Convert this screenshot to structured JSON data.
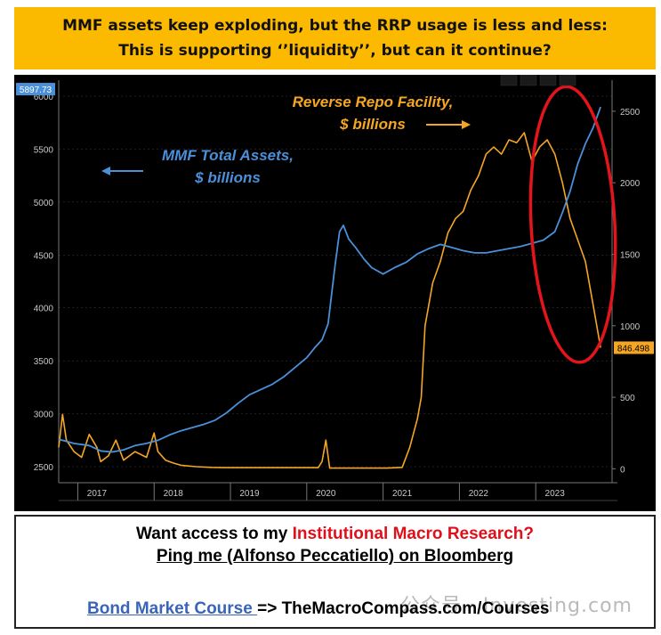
{
  "header": {
    "line1": "MMF assets keep exploding, but the RRP usage is less and less:",
    "line2": "This is supporting ‘’liquidity’’, but can it continue?"
  },
  "chart_data": {
    "type": "line",
    "x_ticks": [
      "2017",
      "2018",
      "2019",
      "2020",
      "2021",
      "2022",
      "2023"
    ],
    "y_left": {
      "ticks": [
        2500,
        3000,
        3500,
        4000,
        4500,
        5000,
        5500,
        6000
      ],
      "ylim": [
        2400,
        6100
      ],
      "last_value_label": "5897.73"
    },
    "y_right": {
      "ticks": [
        0,
        500,
        1000,
        1500,
        2000,
        2500
      ],
      "ylim": [
        -60,
        2680
      ],
      "last_value_label": "846.498"
    },
    "colors": {
      "mmf": "#4a90d9",
      "rrp": "#f5a623",
      "ellipse": "#e3141c",
      "axis_text": "#c8c8c8"
    },
    "annotations": {
      "mmf_label_line1": "MMF Total Assets,",
      "mmf_label_line2": "$ billions",
      "rrp_label_line1": "Reverse Repo Facility,",
      "rrp_label_line2": "$ billions"
    },
    "series": [
      {
        "name": "MMF Total Assets",
        "axis": "left",
        "x": [
          2016.5,
          2016.7,
          2016.9,
          2017.05,
          2017.2,
          2017.35,
          2017.5,
          2017.65,
          2017.8,
          2017.95,
          2018.1,
          2018.25,
          2018.4,
          2018.55,
          2018.7,
          2018.85,
          2019.0,
          2019.15,
          2019.3,
          2019.45,
          2019.6,
          2019.75,
          2019.85,
          2019.95,
          2020.03,
          2020.12,
          2020.18,
          2020.23,
          2020.3,
          2020.4,
          2020.5,
          2020.6,
          2020.75,
          2020.9,
          2021.05,
          2021.2,
          2021.35,
          2021.5,
          2021.65,
          2021.8,
          2021.95,
          2022.1,
          2022.25,
          2022.4,
          2022.55,
          2022.7,
          2022.85,
          2023.0,
          2023.1,
          2023.2,
          2023.3,
          2023.4,
          2023.5,
          2023.6
        ],
        "y": [
          2760,
          2720,
          2700,
          2650,
          2640,
          2660,
          2700,
          2720,
          2750,
          2800,
          2840,
          2870,
          2900,
          2940,
          3010,
          3100,
          3180,
          3230,
          3280,
          3350,
          3440,
          3530,
          3620,
          3700,
          3850,
          4400,
          4720,
          4780,
          4650,
          4560,
          4460,
          4380,
          4320,
          4380,
          4430,
          4510,
          4560,
          4600,
          4570,
          4540,
          4520,
          4520,
          4540,
          4560,
          4580,
          4610,
          4640,
          4720,
          4900,
          5100,
          5360,
          5550,
          5700,
          5897.73
        ]
      },
      {
        "name": "Reverse Repo Facility",
        "axis": "right",
        "x": [
          2016.5,
          2016.55,
          2016.6,
          2016.7,
          2016.8,
          2016.9,
          2017.0,
          2017.05,
          2017.15,
          2017.25,
          2017.35,
          2017.5,
          2017.65,
          2017.75,
          2017.8,
          2017.9,
          2018.0,
          2018.1,
          2018.3,
          2018.5,
          2018.7,
          2018.9,
          2019.1,
          2019.3,
          2019.5,
          2019.7,
          2019.9,
          2019.95,
          2020.0,
          2020.05,
          2020.2,
          2020.5,
          2020.8,
          2021.0,
          2021.1,
          2021.2,
          2021.25,
          2021.3,
          2021.4,
          2021.5,
          2021.6,
          2021.7,
          2021.8,
          2021.9,
          2022.0,
          2022.1,
          2022.2,
          2022.3,
          2022.4,
          2022.5,
          2022.6,
          2022.7,
          2022.8,
          2022.9,
          2023.0,
          2023.1,
          2023.2,
          2023.3,
          2023.4,
          2023.5,
          2023.6
        ],
        "y": [
          150,
          380,
          200,
          120,
          80,
          240,
          150,
          50,
          90,
          200,
          60,
          120,
          80,
          250,
          120,
          60,
          40,
          25,
          15,
          10,
          8,
          8,
          8,
          8,
          8,
          8,
          8,
          50,
          200,
          5,
          5,
          5,
          5,
          10,
          150,
          350,
          500,
          1000,
          1300,
          1450,
          1650,
          1750,
          1800,
          1950,
          2050,
          2200,
          2250,
          2200,
          2300,
          2280,
          2350,
          2150,
          2250,
          2300,
          2200,
          2000,
          1750,
          1600,
          1450,
          1150,
          846.498
        ]
      }
    ]
  },
  "footer": {
    "line1_prefix": "Want access to my ",
    "line1_highlight": "Institutional Macro Research?",
    "line2": "Ping me (Alfonso Peccatiello) on Bloomberg",
    "link_text": "Bond Market Course ",
    "line3_rest": "=> TheMacroCompass.com/Courses",
    "watermark": "公众号 · Investing.com"
  }
}
